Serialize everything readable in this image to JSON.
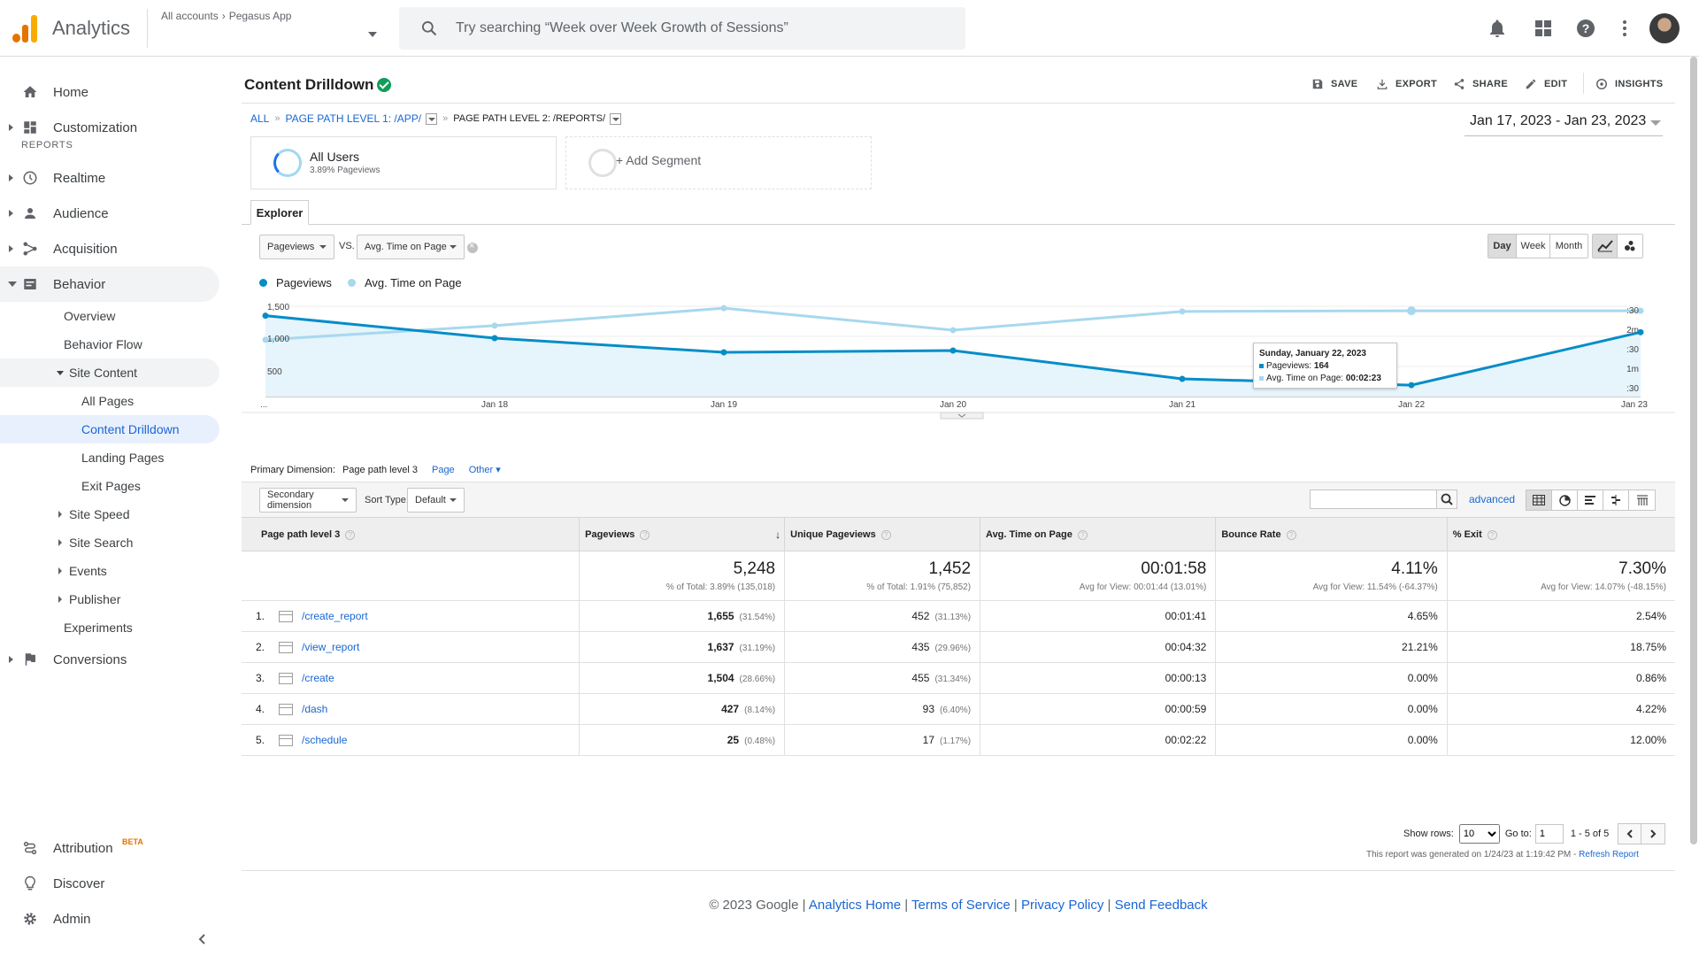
{
  "app": {
    "name": "Analytics",
    "account_root": "All accounts",
    "account_name": "Pegasus App"
  },
  "search": {
    "placeholder": "Try searching “Week over Week Growth of Sessions”"
  },
  "icons": {
    "bell": "bell-icon",
    "apps": "apps-grid-icon",
    "help": "help-icon",
    "more": "more-vert-icon",
    "account": "avatar"
  },
  "sidebar": {
    "home": "Home",
    "customization": "Customization",
    "reports_label": "REPORTS",
    "realtime": "Realtime",
    "audience": "Audience",
    "acquisition": "Acquisition",
    "behavior": "Behavior",
    "behavior_items": {
      "overview": "Overview",
      "behavior_flow": "Behavior Flow",
      "site_content": "Site Content",
      "all_pages": "All Pages",
      "content_drilldown": "Content Drilldown",
      "landing_pages": "Landing Pages",
      "exit_pages": "Exit Pages",
      "site_speed": "Site Speed",
      "site_search": "Site Search",
      "events": "Events",
      "publisher": "Publisher",
      "experiments": "Experiments"
    },
    "conversions": "Conversions",
    "attribution": "Attribution",
    "attribution_badge": "BETA",
    "discover": "Discover",
    "admin": "Admin"
  },
  "report": {
    "title": "Content Drilldown",
    "actions": {
      "save": "SAVE",
      "export": "EXPORT",
      "share": "SHARE",
      "edit": "EDIT",
      "insights": "INSIGHTS"
    },
    "breadcrumb": {
      "all": "ALL",
      "level1": "PAGE PATH LEVEL 1: /app/",
      "level2": "PAGE PATH LEVEL 2: /reports/"
    },
    "date_range": "Jan 17, 2023 - Jan 23, 2023",
    "segments": {
      "all_users": "All Users",
      "all_users_sub": "3.89% Pageviews",
      "add": "+ Add Segment"
    },
    "explorer_tab": "Explorer",
    "metric1": "Pageviews",
    "vs": "VS.",
    "metric2": "Avg. Time on Page",
    "granularity": {
      "day": "Day",
      "week": "Week",
      "month": "Month"
    },
    "legend": {
      "pageviews": "Pageviews",
      "avg_time": "Avg. Time on Page"
    },
    "colors": {
      "pageviews": "#058dc7",
      "avg_time": "#a8d8ee",
      "link": "#1967d2"
    }
  },
  "chart_data": {
    "type": "line",
    "x": [
      "Jan 17",
      "Jan 18",
      "Jan 19",
      "Jan 20",
      "Jan 21",
      "Jan 22",
      "Jan 23"
    ],
    "x_tick_labels": [
      "...",
      "Jan 18",
      "Jan 19",
      "Jan 20",
      "Jan 21",
      "Jan 22",
      "Jan 23"
    ],
    "left_ticks": [
      "1,500",
      "1,000",
      "500"
    ],
    "right_ticks": [
      ":30",
      "2m",
      ":30",
      "1m",
      ":30"
    ],
    "series": [
      {
        "name": "Pageviews",
        "axis": "left",
        "values": [
          1340,
          960,
          720,
          750,
          270,
          164,
          1060
        ]
      },
      {
        "name": "Avg. Time on Page",
        "axis": "right",
        "values_seconds": [
          98,
          120,
          147,
          113,
          142,
          143,
          143
        ]
      }
    ],
    "left_ylim": [
      0,
      1500
    ],
    "tooltip": {
      "date": "Sunday, January 22, 2023",
      "pageviews_label": "Pageviews:",
      "pageviews_value": "164",
      "avg_label": "Avg. Time on Page:",
      "avg_value": "00:02:23"
    }
  },
  "table_controls": {
    "primary_dimension_label": "Primary Dimension:",
    "primary_dimension_current": "Page path level 3",
    "primary_page": "Page",
    "primary_other": "Other",
    "secondary_dimension": "Secondary dimension",
    "sort_type_label": "Sort Type:",
    "sort_type_value": "Default",
    "search_value": "",
    "advanced": "advanced"
  },
  "table": {
    "headers": [
      "Page path level 3",
      "Pageviews",
      "Unique Pageviews",
      "Avg. Time on Page",
      "Bounce Rate",
      "% Exit"
    ],
    "totals": [
      {
        "big": "5,248",
        "small": "% of Total: 3.89% (135,018)"
      },
      {
        "big": "1,452",
        "small": "% of Total: 1.91% (75,852)"
      },
      {
        "big": "00:01:58",
        "small": "Avg for View: 00:01:44 (13.01%)"
      },
      {
        "big": "4.11%",
        "small": "Avg for View: 11.54% (-64.37%)"
      },
      {
        "big": "7.30%",
        "small": "Avg for View: 14.07% (-48.15%)"
      }
    ],
    "rows": [
      {
        "idx": "1.",
        "path": "/create_report",
        "pv": "1,655",
        "pv_pct": "(31.54%)",
        "upv": "452",
        "upv_pct": "(31.13%)",
        "avg": "00:01:41",
        "bounce": "4.65%",
        "exit": "2.54%"
      },
      {
        "idx": "2.",
        "path": "/view_report",
        "pv": "1,637",
        "pv_pct": "(31.19%)",
        "upv": "435",
        "upv_pct": "(29.96%)",
        "avg": "00:04:32",
        "bounce": "21.21%",
        "exit": "18.75%"
      },
      {
        "idx": "3.",
        "path": "/create",
        "pv": "1,504",
        "pv_pct": "(28.66%)",
        "upv": "455",
        "upv_pct": "(31.34%)",
        "avg": "00:00:13",
        "bounce": "0.00%",
        "exit": "0.86%"
      },
      {
        "idx": "4.",
        "path": "/dash",
        "pv": "427",
        "pv_pct": "(8.14%)",
        "upv": "93",
        "upv_pct": "(6.40%)",
        "avg": "00:00:59",
        "bounce": "0.00%",
        "exit": "4.22%"
      },
      {
        "idx": "5.",
        "path": "/schedule",
        "pv": "25",
        "pv_pct": "(0.48%)",
        "upv": "17",
        "upv_pct": "(1.17%)",
        "avg": "00:02:22",
        "bounce": "0.00%",
        "exit": "12.00%"
      }
    ]
  },
  "pager": {
    "show_rows_label": "Show rows:",
    "show_rows_value": "10",
    "goto_label": "Go to:",
    "goto_value": "1",
    "range": "1 - 5 of 5"
  },
  "generated_note": "This report was generated on 1/24/23 at 1:19:42 PM - ",
  "refresh": "Refresh Report",
  "footer": {
    "copyright": "© 2023 Google",
    "links": [
      "Analytics Home",
      "Terms of Service",
      "Privacy Policy",
      "Send Feedback"
    ]
  }
}
